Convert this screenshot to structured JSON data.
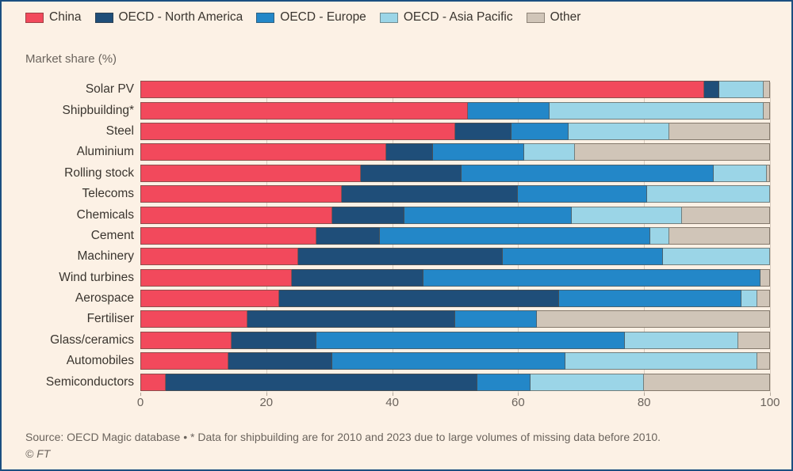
{
  "subtitle": "Market share (%)",
  "legend": [
    {
      "label": "China",
      "color": "#F2495C"
    },
    {
      "label": "OECD - North America",
      "color": "#1F4E79"
    },
    {
      "label": "OECD - Europe",
      "color": "#2387C8"
    },
    {
      "label": "OECD - Asia Pacific",
      "color": "#9BD5E7"
    },
    {
      "label": "Other",
      "color": "#D0C5B8"
    }
  ],
  "chart_data": {
    "type": "bar",
    "stacked": true,
    "orientation": "horizontal",
    "title": "",
    "xlabel": "Market share (%)",
    "ylabel": "",
    "xlim": [
      0,
      100
    ],
    "x_ticks": [
      0,
      20,
      40,
      60,
      80,
      100
    ],
    "grid": true,
    "legend_position": "top",
    "categories": [
      "Solar PV",
      "Shipbuilding*",
      "Steel",
      "Aluminium",
      "Rolling stock",
      "Telecoms",
      "Chemicals",
      "Cement",
      "Machinery",
      "Wind turbines",
      "Aerospace",
      "Fertiliser",
      "Glass/ceramics",
      "Automobiles",
      "Semiconductors"
    ],
    "series": [
      {
        "name": "China",
        "color": "#F2495C",
        "values": [
          89.5,
          52,
          50,
          39,
          35,
          32,
          30.5,
          28,
          25,
          24,
          22,
          17,
          14.5,
          14,
          4
        ]
      },
      {
        "name": "OECD - North America",
        "color": "#1F4E79",
        "values": [
          2.5,
          0,
          9,
          7.5,
          16,
          28,
          11.5,
          10,
          32.5,
          21,
          44.5,
          33,
          13.5,
          16.5,
          49.5
        ]
      },
      {
        "name": "OECD - Europe",
        "color": "#2387C8",
        "values": [
          0,
          13,
          9,
          14.5,
          40,
          20.5,
          26.5,
          43,
          25.5,
          53.5,
          29,
          13,
          49,
          37,
          8.5
        ]
      },
      {
        "name": "OECD - Asia Pacific",
        "color": "#9BD5E7",
        "values": [
          7,
          34,
          16,
          8,
          8.5,
          19.5,
          17.5,
          3,
          17,
          0,
          2.5,
          0,
          18,
          30.5,
          18
        ]
      },
      {
        "name": "Other",
        "color": "#D0C5B8",
        "values": [
          1,
          1,
          16,
          31,
          0.5,
          0,
          14,
          16,
          0,
          1.5,
          2,
          37,
          5,
          2,
          20
        ]
      }
    ]
  },
  "footer": {
    "source": "Source: OECD Magic database • * Data for shipbuilding are for 2010 and 2023 due to large volumes of missing data before 2010.",
    "credit": "© FT"
  }
}
